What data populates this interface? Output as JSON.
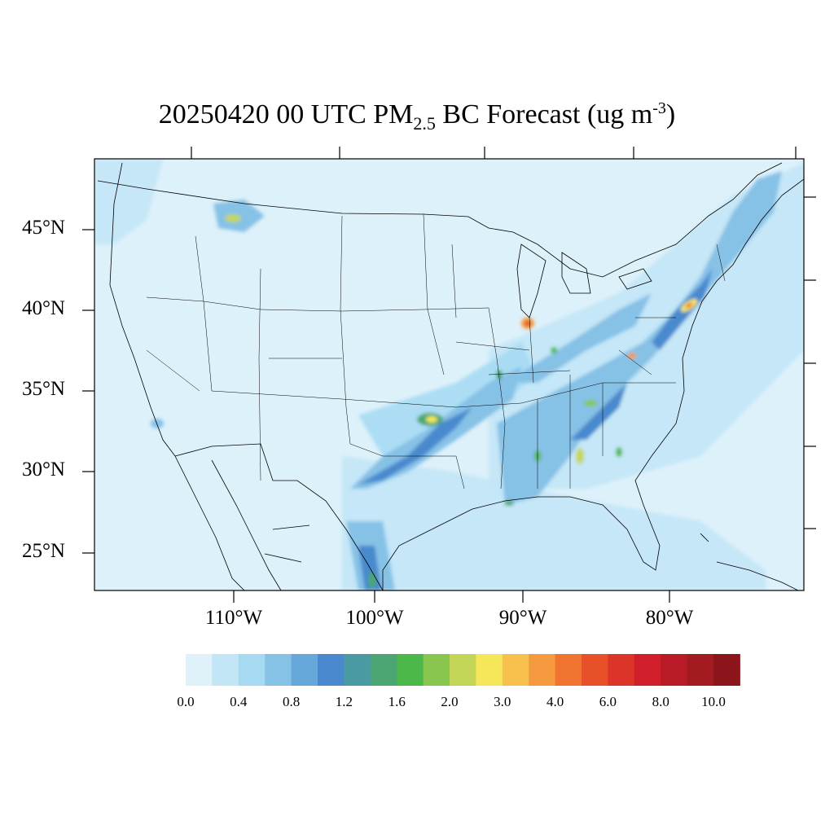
{
  "title": {
    "date": "20250420",
    "hour": "00 UTC",
    "species_main": "PM",
    "species_sub": "2.5",
    "species_rest": "BC Forecast (ug m",
    "unit_sup": "-3",
    "unit_close": ")"
  },
  "map": {
    "background_color": "#ddf1fa",
    "boundary_color": "#000000"
  },
  "lat_labels": [
    "45°N",
    "40°N",
    "35°N",
    "30°N",
    "25°N"
  ],
  "lon_labels": [
    "110°W",
    "100°W",
    "90°W",
    "80°W"
  ],
  "colorbar": {
    "colors": [
      "#dff2fa",
      "#c2e6f6",
      "#a6daf3",
      "#86c1e6",
      "#66a8da",
      "#4a89ce",
      "#4a9aa3",
      "#4ca673",
      "#4bb849",
      "#88c64f",
      "#c4d658",
      "#f6e75a",
      "#f7bf4c",
      "#f59a3e",
      "#f17330",
      "#e8502a",
      "#dc3428",
      "#d01f2a",
      "#b81a26",
      "#a31a20",
      "#8b151a"
    ],
    "labels": [
      "0.0",
      "0.4",
      "0.8",
      "1.2",
      "1.6",
      "2.0",
      "3.0",
      "4.0",
      "6.0",
      "8.0",
      "10.0"
    ]
  }
}
